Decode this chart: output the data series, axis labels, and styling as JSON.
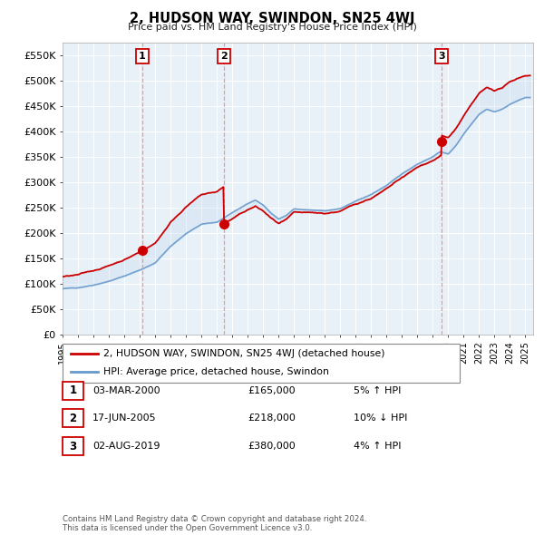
{
  "title": "2, HUDSON WAY, SWINDON, SN25 4WJ",
  "subtitle": "Price paid vs. HM Land Registry's House Price Index (HPI)",
  "ylabel_ticks": [
    "£0",
    "£50K",
    "£100K",
    "£150K",
    "£200K",
    "£250K",
    "£300K",
    "£350K",
    "£400K",
    "£450K",
    "£500K",
    "£550K"
  ],
  "ytick_values": [
    0,
    50000,
    100000,
    150000,
    200000,
    250000,
    300000,
    350000,
    400000,
    450000,
    500000,
    550000
  ],
  "ylim": [
    0,
    575000
  ],
  "background_color": "#ffffff",
  "plot_bg_color": "#e8f0f8",
  "grid_color": "#ffffff",
  "hpi_line_color": "#6699cc",
  "hpi_fill_color": "#c8ddf0",
  "house_line_color": "#cc0000",
  "vline_color": "#ff8888",
  "legend_house": "2, HUDSON WAY, SWINDON, SN25 4WJ (detached house)",
  "legend_hpi": "HPI: Average price, detached house, Swindon",
  "transactions": [
    {
      "num": 1,
      "date": "03-MAR-2000",
      "price": 165000,
      "pct": "5%",
      "dir": "↑",
      "year": 2000.17
    },
    {
      "num": 2,
      "date": "17-JUN-2005",
      "price": 218000,
      "pct": "10%",
      "dir": "↓",
      "year": 2005.46
    },
    {
      "num": 3,
      "date": "02-AUG-2019",
      "price": 380000,
      "pct": "4%",
      "dir": "↑",
      "year": 2019.58
    }
  ],
  "footer": "Contains HM Land Registry data © Crown copyright and database right 2024.\nThis data is licensed under the Open Government Licence v3.0.",
  "xmin": 1995,
  "xmax": 2025.5,
  "hpi_segments": [
    [
      1995.0,
      90000
    ],
    [
      1996.0,
      92000
    ],
    [
      1997.0,
      98000
    ],
    [
      1998.0,
      106000
    ],
    [
      1999.0,
      116000
    ],
    [
      2000.0,
      128000
    ],
    [
      2001.0,
      142000
    ],
    [
      2002.0,
      175000
    ],
    [
      2003.0,
      200000
    ],
    [
      2004.0,
      218000
    ],
    [
      2005.0,
      222000
    ],
    [
      2006.0,
      240000
    ],
    [
      2007.0,
      258000
    ],
    [
      2007.5,
      265000
    ],
    [
      2008.0,
      255000
    ],
    [
      2008.5,
      240000
    ],
    [
      2009.0,
      228000
    ],
    [
      2009.5,
      235000
    ],
    [
      2010.0,
      248000
    ],
    [
      2011.0,
      245000
    ],
    [
      2012.0,
      243000
    ],
    [
      2013.0,
      248000
    ],
    [
      2014.0,
      262000
    ],
    [
      2015.0,
      275000
    ],
    [
      2016.0,
      293000
    ],
    [
      2017.0,
      315000
    ],
    [
      2018.0,
      335000
    ],
    [
      2019.0,
      350000
    ],
    [
      2019.5,
      360000
    ],
    [
      2020.0,
      355000
    ],
    [
      2020.5,
      372000
    ],
    [
      2021.0,
      395000
    ],
    [
      2021.5,
      415000
    ],
    [
      2022.0,
      435000
    ],
    [
      2022.5,
      445000
    ],
    [
      2023.0,
      440000
    ],
    [
      2023.5,
      445000
    ],
    [
      2024.0,
      455000
    ],
    [
      2024.5,
      462000
    ],
    [
      2025.0,
      468000
    ]
  ],
  "sale_years": [
    2000.17,
    2005.46,
    2019.58
  ],
  "sale_prices": [
    165000,
    218000,
    380000
  ]
}
